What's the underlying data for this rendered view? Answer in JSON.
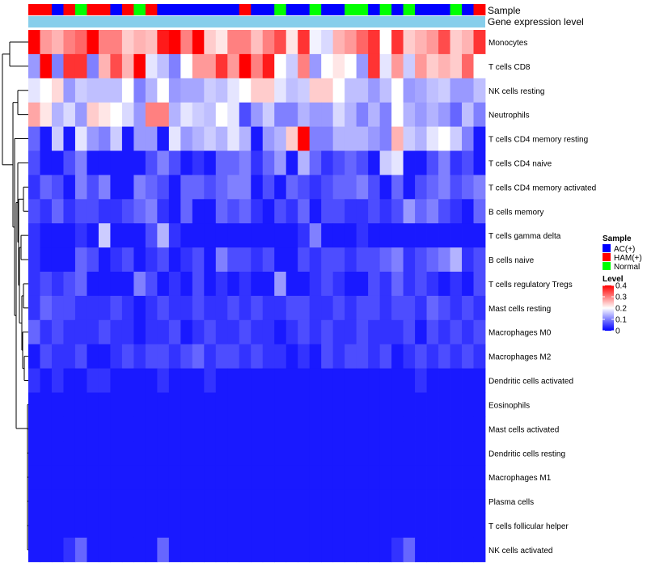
{
  "chart_data": {
    "type": "heatmap",
    "annotation_tracks": [
      "Sample",
      "Gene expression level"
    ],
    "sample_groups": [
      "HAM(+)",
      "HAM(+)",
      "AC(+)",
      "HAM(+)",
      "Normal",
      "HAM(+)",
      "HAM(+)",
      "AC(+)",
      "HAM(+)",
      "Normal",
      "HAM(+)",
      "AC(+)",
      "AC(+)",
      "AC(+)",
      "AC(+)",
      "AC(+)",
      "AC(+)",
      "AC(+)",
      "HAM(+)",
      "AC(+)",
      "AC(+)",
      "Normal",
      "AC(+)",
      "AC(+)",
      "Normal",
      "AC(+)",
      "AC(+)",
      "Normal",
      "Normal",
      "AC(+)",
      "Normal",
      "AC(+)",
      "Normal",
      "AC(+)",
      "AC(+)",
      "AC(+)",
      "Normal",
      "AC(+)",
      "HAM(+)"
    ],
    "rows": [
      "Monocytes",
      "T cells CD8",
      "NK cells resting",
      "Neutrophils",
      "T cells CD4 memory resting",
      "T cells CD4 naive",
      "T cells CD4 memory activated",
      "B cells memory",
      "T cells gamma delta",
      "B cells naive",
      "T cells regulatory  Tregs",
      "Mast cells resting",
      "Macrophages M0",
      "Macrophages M2",
      "Dendritic cells activated",
      "Eosinophils",
      "Mast cells activated",
      "Dendritic cells resting",
      "Macrophages M1",
      "Plasma cells",
      "T cells follicular helper",
      "NK cells activated"
    ],
    "values": [
      [
        0.4,
        0.28,
        0.26,
        0.3,
        0.32,
        0.4,
        0.3,
        0.3,
        0.24,
        0.26,
        0.25,
        0.38,
        0.4,
        0.3,
        0.4,
        0.24,
        0.22,
        0.3,
        0.3,
        0.25,
        0.3,
        0.34,
        0.22,
        0.36,
        0.19,
        0.17,
        0.26,
        0.28,
        0.32,
        0.36,
        0.2,
        0.36,
        0.24,
        0.26,
        0.28,
        0.34,
        0.24,
        0.26,
        0.36
      ],
      [
        0.12,
        0.4,
        0.1,
        0.36,
        0.36,
        0.1,
        0.26,
        0.34,
        0.26,
        0.4,
        0.18,
        0.15,
        0.1,
        0.2,
        0.28,
        0.28,
        0.36,
        0.28,
        0.4,
        0.3,
        0.38,
        0.2,
        0.16,
        0.3,
        0.12,
        0.2,
        0.22,
        0.2,
        0.12,
        0.36,
        0.18,
        0.28,
        0.16,
        0.28,
        0.24,
        0.26,
        0.24,
        0.32,
        0.2
      ],
      [
        0.18,
        0.2,
        0.23,
        0.12,
        0.16,
        0.15,
        0.15,
        0.15,
        0.2,
        0.1,
        0.14,
        0.2,
        0.12,
        0.13,
        0.13,
        0.16,
        0.15,
        0.18,
        0.2,
        0.24,
        0.24,
        0.18,
        0.15,
        0.16,
        0.24,
        0.24,
        0.2,
        0.15,
        0.15,
        0.12,
        0.15,
        0.2,
        0.12,
        0.13,
        0.15,
        0.16,
        0.12,
        0.12,
        0.15
      ],
      [
        0.27,
        0.22,
        0.14,
        0.17,
        0.12,
        0.24,
        0.22,
        0.2,
        0.17,
        0.12,
        0.3,
        0.3,
        0.14,
        0.18,
        0.16,
        0.15,
        0.2,
        0.18,
        0.06,
        0.12,
        0.16,
        0.1,
        0.1,
        0.14,
        0.12,
        0.12,
        0.17,
        0.14,
        0.1,
        0.14,
        0.1,
        0.2,
        0.14,
        0.12,
        0.14,
        0.12,
        0.08,
        0.15,
        0.1
      ],
      [
        0.08,
        0.02,
        0.16,
        0.02,
        0.18,
        0.12,
        0.1,
        0.16,
        0.02,
        0.12,
        0.12,
        0.02,
        0.18,
        0.12,
        0.14,
        0.16,
        0.14,
        0.18,
        0.14,
        0.02,
        0.12,
        0.14,
        0.24,
        0.4,
        0.1,
        0.1,
        0.14,
        0.14,
        0.14,
        0.12,
        0.1,
        0.26,
        0.16,
        0.14,
        0.18,
        0.2,
        0.16,
        0.1,
        0.02
      ],
      [
        0.06,
        0.02,
        0.02,
        0.06,
        0.1,
        0.02,
        0.02,
        0.02,
        0.02,
        0.02,
        0.06,
        0.1,
        0.06,
        0.02,
        0.04,
        0.02,
        0.08,
        0.08,
        0.1,
        0.04,
        0.08,
        0.12,
        0.02,
        0.14,
        0.08,
        0.04,
        0.06,
        0.08,
        0.06,
        0.02,
        0.16,
        0.18,
        0.02,
        0.02,
        0.06,
        0.1,
        0.04,
        0.06,
        0.02
      ],
      [
        0.04,
        0.08,
        0.06,
        0.02,
        0.1,
        0.06,
        0.1,
        0.02,
        0.02,
        0.1,
        0.08,
        0.06,
        0.02,
        0.08,
        0.08,
        0.06,
        0.08,
        0.1,
        0.1,
        0.02,
        0.06,
        0.02,
        0.08,
        0.06,
        0.04,
        0.06,
        0.08,
        0.08,
        0.1,
        0.06,
        0.02,
        0.08,
        0.02,
        0.06,
        0.08,
        0.1,
        0.06,
        0.08,
        0.1
      ],
      [
        0.06,
        0.04,
        0.08,
        0.04,
        0.06,
        0.06,
        0.04,
        0.04,
        0.06,
        0.08,
        0.1,
        0.04,
        0.02,
        0.08,
        0.02,
        0.02,
        0.08,
        0.06,
        0.08,
        0.04,
        0.02,
        0.06,
        0.04,
        0.08,
        0.02,
        0.06,
        0.06,
        0.04,
        0.04,
        0.06,
        0.04,
        0.06,
        0.12,
        0.08,
        0.1,
        0.06,
        0.04,
        0.02,
        0.08
      ],
      [
        0.04,
        0.02,
        0.02,
        0.02,
        0.04,
        0.02,
        0.16,
        0.02,
        0.02,
        0.02,
        0.06,
        0.14,
        0.04,
        0.02,
        0.02,
        0.02,
        0.02,
        0.02,
        0.02,
        0.02,
        0.02,
        0.02,
        0.02,
        0.04,
        0.1,
        0.02,
        0.02,
        0.02,
        0.04,
        0.02,
        0.02,
        0.02,
        0.02,
        0.02,
        0.02,
        0.02,
        0.02,
        0.02,
        0.02
      ],
      [
        0.04,
        0.02,
        0.02,
        0.02,
        0.08,
        0.06,
        0.02,
        0.04,
        0.06,
        0.02,
        0.04,
        0.06,
        0.02,
        0.04,
        0.06,
        0.02,
        0.1,
        0.06,
        0.06,
        0.04,
        0.06,
        0.02,
        0.02,
        0.06,
        0.04,
        0.06,
        0.06,
        0.04,
        0.06,
        0.06,
        0.08,
        0.1,
        0.04,
        0.06,
        0.08,
        0.1,
        0.14,
        0.04,
        0.06
      ],
      [
        0.04,
        0.06,
        0.04,
        0.06,
        0.08,
        0.02,
        0.02,
        0.02,
        0.02,
        0.1,
        0.06,
        0.02,
        0.04,
        0.02,
        0.06,
        0.02,
        0.04,
        0.02,
        0.04,
        0.02,
        0.02,
        0.12,
        0.02,
        0.02,
        0.04,
        0.06,
        0.04,
        0.02,
        0.02,
        0.06,
        0.04,
        0.08,
        0.04,
        0.06,
        0.04,
        0.02,
        0.04,
        0.02,
        0.06
      ],
      [
        0.04,
        0.08,
        0.06,
        0.06,
        0.04,
        0.04,
        0.04,
        0.06,
        0.04,
        0.02,
        0.04,
        0.06,
        0.04,
        0.04,
        0.06,
        0.04,
        0.04,
        0.06,
        0.04,
        0.06,
        0.04,
        0.04,
        0.06,
        0.06,
        0.04,
        0.04,
        0.06,
        0.04,
        0.06,
        0.06,
        0.04,
        0.06,
        0.06,
        0.04,
        0.08,
        0.06,
        0.04,
        0.06,
        0.04
      ],
      [
        0.08,
        0.04,
        0.06,
        0.04,
        0.04,
        0.04,
        0.06,
        0.04,
        0.04,
        0.02,
        0.04,
        0.04,
        0.06,
        0.02,
        0.04,
        0.06,
        0.04,
        0.04,
        0.06,
        0.04,
        0.04,
        0.02,
        0.04,
        0.06,
        0.04,
        0.06,
        0.04,
        0.04,
        0.06,
        0.04,
        0.04,
        0.04,
        0.06,
        0.02,
        0.06,
        0.04,
        0.06,
        0.04,
        0.06
      ],
      [
        0.02,
        0.06,
        0.04,
        0.04,
        0.06,
        0.02,
        0.02,
        0.04,
        0.06,
        0.04,
        0.06,
        0.06,
        0.04,
        0.06,
        0.08,
        0.04,
        0.06,
        0.06,
        0.04,
        0.06,
        0.04,
        0.04,
        0.02,
        0.04,
        0.02,
        0.06,
        0.04,
        0.06,
        0.06,
        0.04,
        0.06,
        0.02,
        0.04,
        0.06,
        0.04,
        0.06,
        0.04,
        0.06,
        0.04
      ],
      [
        0.04,
        0.02,
        0.04,
        0.02,
        0.02,
        0.04,
        0.04,
        0.02,
        0.02,
        0.02,
        0.02,
        0.04,
        0.02,
        0.02,
        0.02,
        0.04,
        0.02,
        0.02,
        0.02,
        0.02,
        0.02,
        0.02,
        0.02,
        0.02,
        0.02,
        0.02,
        0.02,
        0.02,
        0.02,
        0.02,
        0.02,
        0.02,
        0.02,
        0.04,
        0.02,
        0.02,
        0.02,
        0.02,
        0.02
      ],
      [
        0.02,
        0.02,
        0.02,
        0.02,
        0.02,
        0.02,
        0.02,
        0.02,
        0.02,
        0.02,
        0.02,
        0.02,
        0.02,
        0.02,
        0.02,
        0.02,
        0.02,
        0.02,
        0.02,
        0.02,
        0.02,
        0.02,
        0.02,
        0.02,
        0.02,
        0.02,
        0.02,
        0.02,
        0.02,
        0.02,
        0.02,
        0.02,
        0.02,
        0.02,
        0.02,
        0.02,
        0.02,
        0.02,
        0.02
      ],
      [
        0.02,
        0.02,
        0.02,
        0.02,
        0.02,
        0.02,
        0.02,
        0.02,
        0.02,
        0.02,
        0.02,
        0.02,
        0.02,
        0.02,
        0.02,
        0.02,
        0.02,
        0.02,
        0.02,
        0.02,
        0.02,
        0.02,
        0.02,
        0.02,
        0.02,
        0.02,
        0.02,
        0.02,
        0.02,
        0.02,
        0.02,
        0.02,
        0.02,
        0.02,
        0.02,
        0.02,
        0.02,
        0.02,
        0.02
      ],
      [
        0.02,
        0.02,
        0.02,
        0.02,
        0.02,
        0.02,
        0.02,
        0.02,
        0.02,
        0.02,
        0.02,
        0.02,
        0.02,
        0.02,
        0.02,
        0.02,
        0.02,
        0.02,
        0.02,
        0.02,
        0.02,
        0.02,
        0.02,
        0.02,
        0.02,
        0.02,
        0.02,
        0.02,
        0.02,
        0.02,
        0.02,
        0.02,
        0.02,
        0.02,
        0.02,
        0.02,
        0.02,
        0.02,
        0.02
      ],
      [
        0.02,
        0.02,
        0.02,
        0.02,
        0.02,
        0.02,
        0.02,
        0.02,
        0.02,
        0.02,
        0.02,
        0.02,
        0.02,
        0.02,
        0.02,
        0.02,
        0.02,
        0.02,
        0.02,
        0.02,
        0.02,
        0.02,
        0.02,
        0.02,
        0.02,
        0.02,
        0.02,
        0.02,
        0.02,
        0.02,
        0.02,
        0.02,
        0.02,
        0.02,
        0.02,
        0.02,
        0.02,
        0.02,
        0.02
      ],
      [
        0.02,
        0.02,
        0.02,
        0.02,
        0.02,
        0.02,
        0.02,
        0.02,
        0.02,
        0.02,
        0.02,
        0.02,
        0.02,
        0.02,
        0.02,
        0.02,
        0.02,
        0.02,
        0.02,
        0.02,
        0.02,
        0.02,
        0.02,
        0.02,
        0.02,
        0.02,
        0.02,
        0.02,
        0.02,
        0.02,
        0.02,
        0.02,
        0.02,
        0.02,
        0.02,
        0.02,
        0.02,
        0.02,
        0.02
      ],
      [
        0.02,
        0.02,
        0.02,
        0.02,
        0.02,
        0.02,
        0.02,
        0.02,
        0.02,
        0.02,
        0.02,
        0.02,
        0.02,
        0.02,
        0.02,
        0.02,
        0.02,
        0.02,
        0.02,
        0.02,
        0.02,
        0.02,
        0.02,
        0.02,
        0.02,
        0.02,
        0.02,
        0.02,
        0.02,
        0.02,
        0.02,
        0.02,
        0.02,
        0.02,
        0.02,
        0.02,
        0.02,
        0.02,
        0.02
      ],
      [
        0.02,
        0.02,
        0.02,
        0.04,
        0.08,
        0.02,
        0.02,
        0.02,
        0.02,
        0.02,
        0.02,
        0.08,
        0.02,
        0.02,
        0.02,
        0.02,
        0.02,
        0.02,
        0.02,
        0.02,
        0.02,
        0.02,
        0.02,
        0.02,
        0.02,
        0.02,
        0.02,
        0.02,
        0.02,
        0.02,
        0.02,
        0.04,
        0.08,
        0.02,
        0.02,
        0.02,
        0.02,
        0.02,
        0.02
      ]
    ],
    "legend_sample": {
      "title": "Sample",
      "entries": [
        {
          "label": "AC(+)",
          "color": "#0000ff"
        },
        {
          "label": "HAM(+)",
          "color": "#ff0000"
        },
        {
          "label": "Normal",
          "color": "#00ff00"
        }
      ]
    },
    "legend_level": {
      "title": "Level",
      "ticks": [
        "0.4",
        "0.3",
        "0.2",
        "0.1",
        "0"
      ],
      "tick_values": [
        0.4,
        0.3,
        0.2,
        0.1,
        0.0
      ],
      "range": [
        0,
        0.4
      ],
      "colors": {
        "low": "#0000ff",
        "mid": "#ffffff",
        "high": "#ff0000"
      }
    },
    "expression_bar_color": "#87ceeb"
  }
}
